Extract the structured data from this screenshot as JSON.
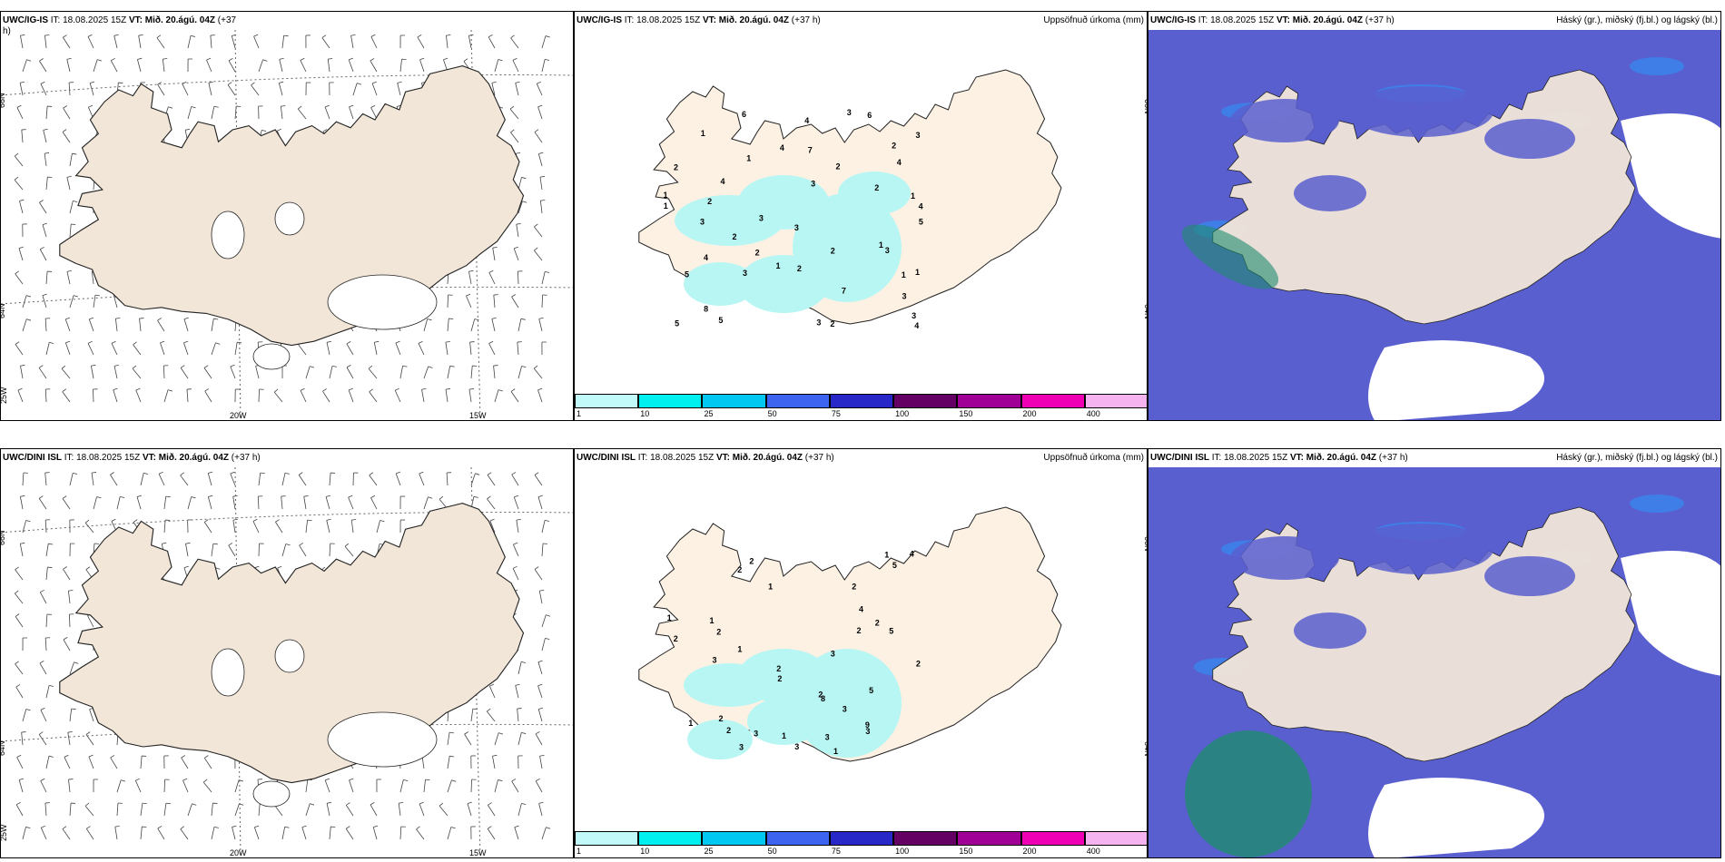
{
  "panels": [
    {
      "id": "top-wind",
      "hdr_model": "UWC/IG-IS",
      "hdr_it": "IT: 18.08.2025 15Z",
      "hdr_vt": "VT: Mið. 20.ágú. 04Z",
      "hdr_lead": "(+37",
      "hdr_lead2": "h)",
      "right_title": ""
    },
    {
      "id": "top-precip",
      "hdr_model": "UWC/IG-IS",
      "hdr_it": "IT: 18.08.2025 15Z",
      "hdr_vt": "VT: Mið. 20.ágú. 04Z",
      "hdr_lead": "(+37 h)",
      "right_title": "Uppsöfnuð úrkoma (mm)"
    },
    {
      "id": "top-cloud",
      "hdr_model": "UWC/IG-IS",
      "hdr_it": "IT: 18.08.2025 15Z",
      "hdr_vt": "VT: Mið. 20.ágú. 04Z",
      "hdr_lead": "(+37 h)",
      "right_title": "Háský (gr.), miðský (fj.bl.) og lágský (bl.)"
    },
    {
      "id": "bottom-wind",
      "hdr_model": "UWC/DINI ISL",
      "hdr_it": "IT: 18.08.2025 15Z",
      "hdr_vt": "VT: Mið. 20.ágú. 04Z",
      "hdr_lead": "(+37 h)",
      "right_title": ""
    },
    {
      "id": "bottom-precip",
      "hdr_model": "UWC/DINI ISL",
      "hdr_it": "IT: 18.08.2025 15Z",
      "hdr_vt": "VT: Mið. 20.ágú. 04Z",
      "hdr_lead": "(+37 h)",
      "right_title": "Uppsöfnuð úrkoma (mm)"
    },
    {
      "id": "bottom-cloud",
      "hdr_model": "UWC/DINI ISL",
      "hdr_it": "IT: 18.08.2025 15Z",
      "hdr_vt": "VT: Mið. 20.ágú. 04Z",
      "hdr_lead": "(+37 h)",
      "right_title": "Háský (gr.), miðský (fj.bl.) og lágský (bl.)"
    }
  ],
  "grid_labels": {
    "lat66": "66N",
    "lat64": "64N",
    "lon25": "25W",
    "lon20": "20W",
    "lon15": "15W"
  },
  "colorbar": {
    "ticks": [
      "1",
      "10",
      "25",
      "50",
      "75",
      "100",
      "150",
      "200",
      "400"
    ],
    "colors": [
      "#c2fafa",
      "#00f0f0",
      "#00c8f0",
      "#3c64f0",
      "#2828c8",
      "#640064",
      "#a00096",
      "#f000b4",
      "#f5b4f0"
    ]
  },
  "colors": {
    "land": "#f1e6d8",
    "land_precip": "#fdf1e4",
    "precip_light": "#b8f6f4",
    "cloud_low": "#5a5fcf",
    "cloud_mid": "#3f7ee6",
    "cloud_high": "#1e8c6e",
    "coast": "#222222"
  },
  "precip_top": [
    "1",
    "1",
    "2",
    "4",
    "3",
    "1",
    "2",
    "3",
    "1",
    "2",
    "4",
    "3",
    "2",
    "3",
    "5",
    "3",
    "2",
    "1",
    "6",
    "4",
    "3",
    "7",
    "8",
    "4",
    "3",
    "6",
    "5",
    "7",
    "3",
    "3",
    "5",
    "4",
    "3",
    "4",
    "2",
    "1",
    "5",
    "2",
    "4",
    "1",
    "2",
    "2",
    "1",
    "2",
    "3",
    "1"
  ],
  "precip_bottom": [
    "1",
    "2",
    "2",
    "1",
    "2",
    "3",
    "2",
    "1",
    "2",
    "2",
    "1",
    "1",
    "2",
    "2",
    "2",
    "1",
    "2",
    "5",
    "5",
    "5",
    "9",
    "8",
    "3",
    "3",
    "3",
    "4",
    "3",
    "2",
    "3",
    "1",
    "3",
    "4",
    "2",
    "3",
    "2",
    "1"
  ]
}
